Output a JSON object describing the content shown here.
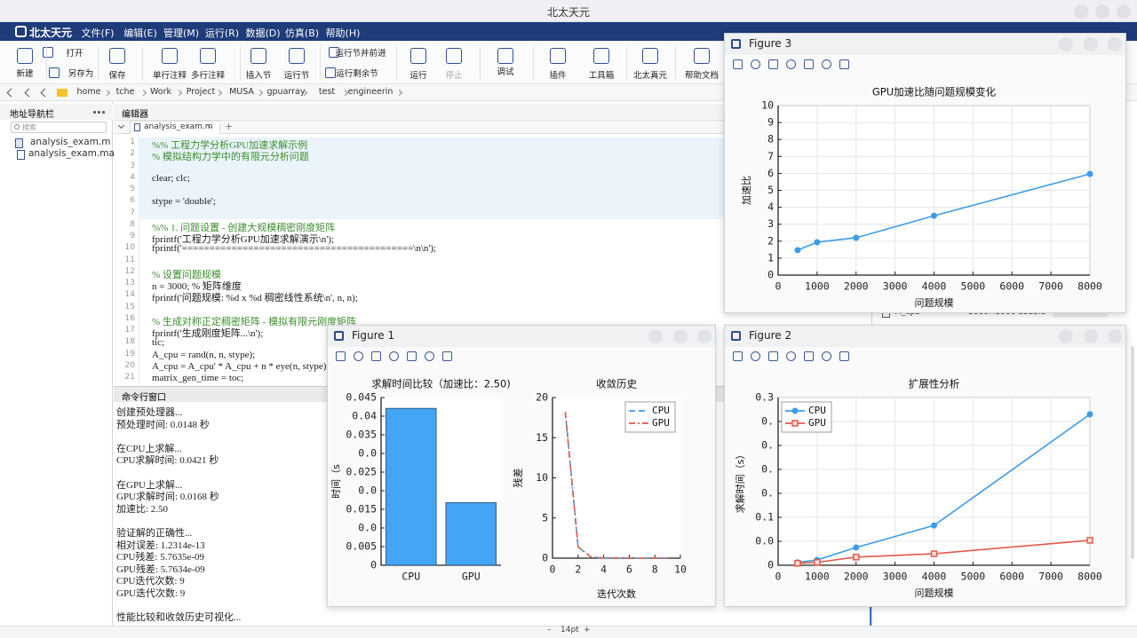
{
  "app": {
    "title": "北太天元",
    "logo": "北太天元",
    "menu": [
      "文件(F)",
      "编辑(E)",
      "管理(M)",
      "运行(R)",
      "数据(D)",
      "仿真(B)",
      "帮助(H)"
    ],
    "toolbar": [
      "新建",
      "打开",
      "另存为",
      "保存",
      "单行注释",
      "多行注释",
      "插入节",
      "运行节",
      "运行节并前进",
      "运行剩余节",
      "运行",
      "停止",
      "调试",
      "插件",
      "工具箱",
      "北太真元",
      "帮助文档"
    ],
    "breadcrumb": [
      "home",
      "tche",
      "Work",
      "Project",
      "MUSA",
      "gpuarray",
      "test",
      "engineerin"
    ]
  },
  "nav": {
    "title": "地址导航栏",
    "search": "搜索",
    "files": [
      "analysis_exam.m",
      "analysis_exam.masv"
    ]
  },
  "editor": {
    "title": "编辑器",
    "tab": "analysis_exam.m",
    "new_tab": "+",
    "lines": [
      {
        "no": 1,
        "text": "%% 工程力学分析GPU加速求解示例"
      },
      {
        "no": 2,
        "text": "% 模拟结构力学中的有限元分析问题"
      },
      {
        "no": 3
      },
      {
        "no": 4,
        "text": "clear; clc;"
      },
      {
        "no": 5
      },
      {
        "no": 6,
        "text": "stype = 'double';"
      },
      {
        "no": 7
      },
      {
        "no": 8,
        "text": "%% 1. 问题设置 - 创建大规模稠密刚度矩阵"
      },
      {
        "no": 9,
        "text": "fprintf('工程力学分析GPU加速求解演示\\n');"
      },
      {
        "no": 10,
        "text": "fprintf('==========================================\\n\\n');"
      },
      {
        "no": 11
      },
      {
        "no": 12,
        "text": "% 设置问题规模"
      },
      {
        "no": 13,
        "text": "n = 3000; % 矩阵维度"
      },
      {
        "no": 14,
        "text": "fprintf('问题规模: %d x %d 稠密线性系统\\n', n, n);"
      },
      {
        "no": 15
      },
      {
        "no": 16,
        "text": "% 生成对称正定稠密矩阵 - 模拟有限元刚度矩阵"
      },
      {
        "no": 17,
        "text": "fprintf('生成刚度矩阵...\\n');"
      },
      {
        "no": 18,
        "text": "tic;"
      },
      {
        "no": 19,
        "text": "A_cpu = rand(n, n, stype);"
      },
      {
        "no": 20,
        "text": "A_cpu = A_cpu' * A_cpu + n * eye(n, stype);"
      },
      {
        "no": 21,
        "text": "matrix_gen_time = toc;"
      }
    ]
  },
  "workspace": {
    "name": "M_cpu",
    "size": "3000×3000 double"
  },
  "command": {
    "title": "命令行窗口",
    "lines": [
      "创建预处理器...",
      "预处理时间: 0.0148 秒",
      null,
      "在CPU上求解...",
      "CPU求解时间: 0.0421 秒",
      null,
      "在GPU上求解...",
      "GPU求解时间: 0.0168 秒",
      "加速比: 2.50",
      null,
      "验证解的正确性...",
      "相对误差: 1.2314e-13",
      "CPU残差: 5.7635e-09",
      "GPU残差: 5.7634e-09",
      "CPU迭代次数: 9",
      "GPU迭代次数: 9",
      null,
      "性能比较和收敛历史可视化..."
    ]
  },
  "status": {
    "zoom_out": "–",
    "font_size": "14pt",
    "zoom_in": "+"
  },
  "figures": [
    {
      "title": "Figure 3",
      "chart_data": {
        "type": "line",
        "title": "GPU加速比随问题规模变化",
        "xlabel": "问题规模",
        "ylabel": "加速比",
        "x": [
          500,
          1000,
          2000,
          4000,
          8000
        ],
        "series": [
          {
            "color": "#3d9be9",
            "marker": "circle",
            "values": [
              1.47,
              1.94,
              2.2,
              3.5,
              5.97
            ]
          }
        ],
        "xlim": [
          0,
          8000
        ],
        "xticks": [
          0,
          1000,
          2000,
          3000,
          4000,
          5000,
          6000,
          7000,
          8000
        ],
        "ylim": [
          0,
          10
        ],
        "yticks": [
          0,
          1,
          2,
          3,
          4,
          5,
          6,
          7,
          8,
          9,
          10
        ],
        "grid": true
      }
    },
    {
      "title": "Figure 1",
      "chart_data": [
        {
          "type": "bar",
          "title": "求解时间比较（加速比：2.50)",
          "ylabel": "时间（s",
          "categories": [
            "CPU",
            "GPU"
          ],
          "values": [
            0.0421,
            0.0168
          ],
          "color": "#42a5f5",
          "ylim": [
            0,
            0.045
          ],
          "yticks": [
            0,
            0.005,
            {
              "value": 0.01,
              "label": "0.0"
            },
            0.015,
            {
              "value": 0.02,
              "label": "0.0"
            },
            0.025,
            {
              "value": 0.03,
              "label": "0.0"
            },
            0.035,
            0.04,
            0.045
          ],
          "grid": false
        },
        {
          "type": "line",
          "title": "收敛历史",
          "xlabel": "迭代次数",
          "ylabel": "残差",
          "x": [
            1,
            2,
            3,
            4,
            5,
            6,
            7,
            8,
            9
          ],
          "series": [
            {
              "name": "CPU",
              "color": "#3d9be9",
              "dash": "dashed",
              "values": [
                18.2,
                1.4,
                0.15,
                0.02,
                0,
                0,
                0,
                0,
                0
              ]
            },
            {
              "name": "GPU",
              "color": "#e05a4a",
              "dash": "dashdot",
              "values": [
                18.2,
                1.4,
                0.15,
                0.02,
                0,
                0,
                0,
                0,
                0
              ]
            }
          ],
          "xlim": [
            0,
            10
          ],
          "xticks": [
            0,
            2,
            4,
            6,
            8,
            10
          ],
          "ylim": [
            0,
            20
          ],
          "yticks": [
            0,
            5,
            10,
            15,
            20
          ],
          "grid": false,
          "legend": "upper right"
        }
      ]
    },
    {
      "title": "Figure 2",
      "chart_data": {
        "type": "line",
        "title": "扩展性分析",
        "xlabel": "问题规模",
        "ylabel": "求解时间（s）",
        "x": [
          500,
          1000,
          2000,
          4000,
          8000
        ],
        "series": [
          {
            "name": "CPU",
            "color": "#3d9be9",
            "marker": "circle",
            "values": [
              0.006,
              0.011,
              0.037,
              0.083,
              0.315
            ]
          },
          {
            "name": "GPU",
            "color": "#e05a4a",
            "marker": "square",
            "values": [
              0.004,
              0.006,
              0.017,
              0.024,
              0.052
            ]
          }
        ],
        "xlim": [
          0,
          8000
        ],
        "xticks": [
          0,
          1000,
          2000,
          3000,
          4000,
          5000,
          6000,
          7000,
          8000
        ],
        "ylim": [
          0,
          0.35
        ],
        "yticks": [
          0,
          {
            "value": 0.05,
            "label": "0.0"
          },
          0.1,
          {
            "value": 0.15,
            "label": "0."
          },
          {
            "value": 0.2,
            "label": "0."
          },
          {
            "value": 0.25,
            "label": "0."
          },
          {
            "value": 0.3,
            "label": "0."
          },
          {
            "value": 0.35,
            "label": "0.3"
          }
        ],
        "grid": true,
        "legend": "upper left"
      }
    }
  ]
}
